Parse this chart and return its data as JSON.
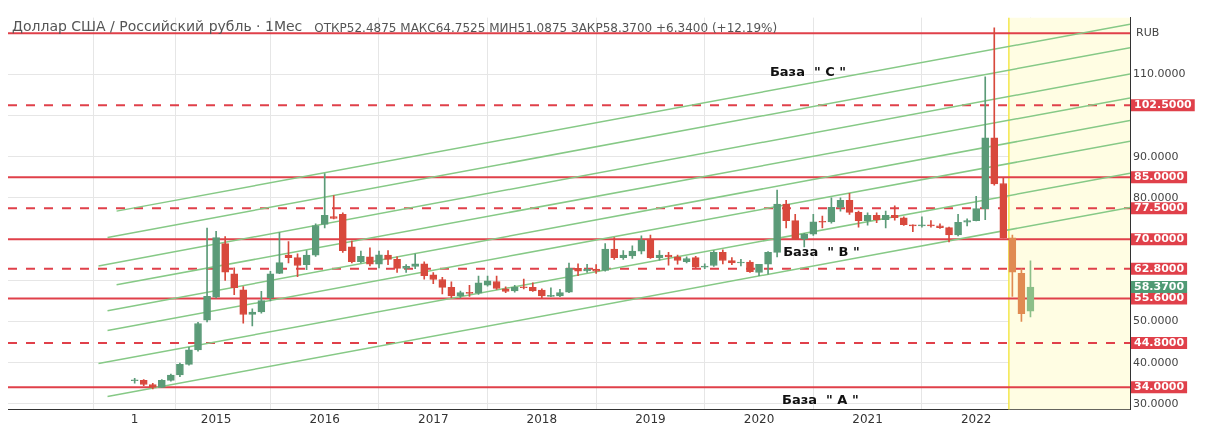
{
  "chart_data": {
    "type": "candlestick",
    "title": "Доллар США / Российский рубль · 1Мес",
    "subtitle": "ОТКР52.4875 МАКС64.7525 МИН51.0875 ЗАКР58.3700 +6.3400 (+12.19%)",
    "ylabel": "RUB",
    "x": [
      "2014-04",
      "2014-05",
      "2014-06",
      "2014-07",
      "2014-08",
      "2014-09",
      "2014-10",
      "2014-11",
      "2014-12",
      "2015-01",
      "2015-02",
      "2015-03",
      "2015-04",
      "2015-05",
      "2015-06",
      "2015-07",
      "2015-08",
      "2015-09",
      "2015-10",
      "2015-11",
      "2015-12",
      "2016-01",
      "2016-02",
      "2016-03",
      "2016-04",
      "2016-05",
      "2016-06",
      "2016-07",
      "2016-08",
      "2016-09",
      "2016-10",
      "2016-11",
      "2016-12",
      "2017-01",
      "2017-02",
      "2017-03",
      "2017-04",
      "2017-05",
      "2017-06",
      "2017-07",
      "2017-08",
      "2017-09",
      "2017-10",
      "2017-11",
      "2017-12",
      "2018-01",
      "2018-02",
      "2018-03",
      "2018-04",
      "2018-05",
      "2018-06",
      "2018-07",
      "2018-08",
      "2018-09",
      "2018-10",
      "2018-11",
      "2018-12",
      "2019-01",
      "2019-02",
      "2019-03",
      "2019-04",
      "2019-05",
      "2019-06",
      "2019-07",
      "2019-08",
      "2019-09",
      "2019-10",
      "2019-11",
      "2019-12",
      "2020-01",
      "2020-02",
      "2020-03",
      "2020-04",
      "2020-05",
      "2020-06",
      "2020-07",
      "2020-08",
      "2020-09",
      "2020-10",
      "2020-11",
      "2020-12",
      "2021-01",
      "2021-02",
      "2021-03",
      "2021-04",
      "2021-05",
      "2021-06",
      "2021-07",
      "2021-08",
      "2021-09",
      "2021-10",
      "2021-11",
      "2021-12",
      "2022-01",
      "2022-02",
      "2022-03",
      "2022-04",
      "2022-05",
      "2022-06",
      "2022-07"
    ],
    "ohlc": [
      [
        35.6,
        36.2,
        35.0,
        35.7
      ],
      [
        35.7,
        35.9,
        34.4,
        34.7
      ],
      [
        34.7,
        35.0,
        33.6,
        34.0
      ],
      [
        34.0,
        35.9,
        33.9,
        35.7
      ],
      [
        35.7,
        37.2,
        35.5,
        37.0
      ],
      [
        37.0,
        39.9,
        36.6,
        39.6
      ],
      [
        39.6,
        43.7,
        39.4,
        43.1
      ],
      [
        43.1,
        49.8,
        42.8,
        49.5
      ],
      [
        50.3,
        72.7,
        49.9,
        56.1
      ],
      [
        55.9,
        71.9,
        55.7,
        70.4
      ],
      [
        68.9,
        70.6,
        60.0,
        62.0
      ],
      [
        61.6,
        63.0,
        56.5,
        58.2
      ],
      [
        57.7,
        58.5,
        49.6,
        51.7
      ],
      [
        51.7,
        53.1,
        48.9,
        52.3
      ],
      [
        52.3,
        57.3,
        52.0,
        55.1
      ],
      [
        55.7,
        62.2,
        55.0,
        61.6
      ],
      [
        61.7,
        71.6,
        61.6,
        64.3
      ],
      [
        66.1,
        69.4,
        64.2,
        65.5
      ],
      [
        65.5,
        66.4,
        60.9,
        63.6
      ],
      [
        63.8,
        67.2,
        62.6,
        66.1
      ],
      [
        66.1,
        73.7,
        65.8,
        73.3
      ],
      [
        73.6,
        85.9,
        72.7,
        75.8
      ],
      [
        75.5,
        80.6,
        74.9,
        75.0
      ],
      [
        76.0,
        76.4,
        66.8,
        67.2
      ],
      [
        68.1,
        69.5,
        64.2,
        64.5
      ],
      [
        64.5,
        67.1,
        64.2,
        65.8
      ],
      [
        65.7,
        67.9,
        63.5,
        63.9
      ],
      [
        63.9,
        67.1,
        63.0,
        66.2
      ],
      [
        66.1,
        67.2,
        63.8,
        65.1
      ],
      [
        65.1,
        65.7,
        61.9,
        62.9
      ],
      [
        62.9,
        63.8,
        61.9,
        63.4
      ],
      [
        63.4,
        66.4,
        62.8,
        64.0
      ],
      [
        64.0,
        64.5,
        60.3,
        61.1
      ],
      [
        61.3,
        61.9,
        59.2,
        60.2
      ],
      [
        60.2,
        60.7,
        56.7,
        58.3
      ],
      [
        58.3,
        59.6,
        55.7,
        56.2
      ],
      [
        56.2,
        57.4,
        55.7,
        57.0
      ],
      [
        57.1,
        58.8,
        56.1,
        56.8
      ],
      [
        56.9,
        61.0,
        56.6,
        59.4
      ],
      [
        58.8,
        61.0,
        58.6,
        59.9
      ],
      [
        59.7,
        61.0,
        57.8,
        58.0
      ],
      [
        57.9,
        58.4,
        57.0,
        57.3
      ],
      [
        57.4,
        58.8,
        57.1,
        58.3
      ],
      [
        58.3,
        60.3,
        57.9,
        58.2
      ],
      [
        58.3,
        59.4,
        57.3,
        57.4
      ],
      [
        57.6,
        57.9,
        55.7,
        56.2
      ],
      [
        56.1,
        58.2,
        56.0,
        56.2
      ],
      [
        56.2,
        57.8,
        56.0,
        57.0
      ],
      [
        57.1,
        64.2,
        57.0,
        62.9
      ],
      [
        62.9,
        64.0,
        61.1,
        62.2
      ],
      [
        62.3,
        63.9,
        61.9,
        62.7
      ],
      [
        62.7,
        63.8,
        61.7,
        62.2
      ],
      [
        62.4,
        68.9,
        62.2,
        67.6
      ],
      [
        67.6,
        70.4,
        65.1,
        65.5
      ],
      [
        65.5,
        67.2,
        65.1,
        66.1
      ],
      [
        65.9,
        68.4,
        65.3,
        67.1
      ],
      [
        67.1,
        70.8,
        66.4,
        69.7
      ],
      [
        70.0,
        71.0,
        65.3,
        65.5
      ],
      [
        65.5,
        67.2,
        64.9,
        66.1
      ],
      [
        66.1,
        66.8,
        63.7,
        65.7
      ],
      [
        65.7,
        66.1,
        63.9,
        64.8
      ],
      [
        64.5,
        65.7,
        64.2,
        65.3
      ],
      [
        65.5,
        65.8,
        63.0,
        63.2
      ],
      [
        63.2,
        64.0,
        62.8,
        63.4
      ],
      [
        63.6,
        67.2,
        63.4,
        66.8
      ],
      [
        66.8,
        67.4,
        64.0,
        64.8
      ],
      [
        64.8,
        65.5,
        63.8,
        64.2
      ],
      [
        64.2,
        65.1,
        63.5,
        64.4
      ],
      [
        64.4,
        64.8,
        61.9,
        62.1
      ],
      [
        61.9,
        63.9,
        61.1,
        63.9
      ],
      [
        63.9,
        67.0,
        61.5,
        66.8
      ],
      [
        66.8,
        81.9,
        65.7,
        78.5
      ],
      [
        78.5,
        79.4,
        72.7,
        74.5
      ],
      [
        74.5,
        76.0,
        69.9,
        70.0
      ],
      [
        70.0,
        71.4,
        68.1,
        71.2
      ],
      [
        71.2,
        76.0,
        70.9,
        74.2
      ],
      [
        74.3,
        75.6,
        72.7,
        74.1
      ],
      [
        74.2,
        80.0,
        73.9,
        77.7
      ],
      [
        77.7,
        80.0,
        76.8,
        79.4
      ],
      [
        79.4,
        81.1,
        76.0,
        76.5
      ],
      [
        76.5,
        76.8,
        72.9,
        74.5
      ],
      [
        74.5,
        76.4,
        73.4,
        75.8
      ],
      [
        75.8,
        76.4,
        74.0,
        74.7
      ],
      [
        74.7,
        76.8,
        72.7,
        75.8
      ],
      [
        75.8,
        78.1,
        74.6,
        75.2
      ],
      [
        75.2,
        75.4,
        73.3,
        73.5
      ],
      [
        73.5,
        73.5,
        71.8,
        73.2
      ],
      [
        73.2,
        75.4,
        72.9,
        73.3
      ],
      [
        73.3,
        74.5,
        72.9,
        73.2
      ],
      [
        73.2,
        73.7,
        72.6,
        72.8
      ],
      [
        72.8,
        72.9,
        69.3,
        71.0
      ],
      [
        71.0,
        76.0,
        70.8,
        74.1
      ],
      [
        74.1,
        74.9,
        73.2,
        74.5
      ],
      [
        74.5,
        80.4,
        74.4,
        77.4
      ],
      [
        77.4,
        109.4,
        74.7,
        94.6
      ],
      [
        94.6,
        121.3,
        83.1,
        83.4
      ],
      [
        83.5,
        84.8,
        70.3,
        70.3
      ],
      [
        70.3,
        71.0,
        56.1,
        62.0
      ],
      [
        61.7,
        62.8,
        50.0,
        51.9
      ],
      [
        52.4875,
        64.7525,
        51.0875,
        58.37
      ]
    ],
    "colors": [
      "#5b9b78",
      "#d8493d",
      "#d8493d",
      "#5b9b78",
      "#5b9b78",
      "#5b9b78",
      "#5b9b78",
      "#5b9b78",
      "#5b9b78",
      "#5b9b78",
      "#d8493d",
      "#d8493d",
      "#d8493d",
      "#5b9b78",
      "#5b9b78",
      "#5b9b78",
      "#5b9b78",
      "#d8493d",
      "#d8493d",
      "#5b9b78",
      "#5b9b78",
      "#5b9b78",
      "#d8493d",
      "#d8493d",
      "#d8493d",
      "#5b9b78",
      "#d8493d",
      "#5b9b78",
      "#d8493d",
      "#d8493d",
      "#5b9b78",
      "#5b9b78",
      "#d8493d",
      "#d8493d",
      "#d8493d",
      "#d8493d",
      "#5b9b78",
      "#d8493d",
      "#5b9b78",
      "#5b9b78",
      "#d8493d",
      "#d8493d",
      "#5b9b78",
      "#d8493d",
      "#d8493d",
      "#d8493d",
      "#5b9b78",
      "#5b9b78",
      "#5b9b78",
      "#d8493d",
      "#5b9b78",
      "#d8493d",
      "#5b9b78",
      "#d8493d",
      "#5b9b78",
      "#5b9b78",
      "#5b9b78",
      "#d8493d",
      "#5b9b78",
      "#d8493d",
      "#d8493d",
      "#5b9b78",
      "#d8493d",
      "#5b9b78",
      "#5b9b78",
      "#d8493d",
      "#d8493d",
      "#5b9b78",
      "#d8493d",
      "#5b9b78",
      "#5b9b78",
      "#5b9b78",
      "#d8493d",
      "#d8493d",
      "#5b9b78",
      "#5b9b78",
      "#d8493d",
      "#5b9b78",
      "#5b9b78",
      "#d8493d",
      "#d8493d",
      "#5b9b78",
      "#d8493d",
      "#5b9b78",
      "#d8493d",
      "#d8493d",
      "#d8493d",
      "#5b9b78",
      "#d8493d",
      "#d8493d",
      "#d8493d",
      "#5b9b78",
      "#5b9b78",
      "#5b9b78",
      "#5b9b78",
      "#d8493d",
      "#d8493d",
      "#e08b52",
      "#e08b52",
      "#8cbf88"
    ],
    "series": [
      {
        "type": "line",
        "color": "#86c986",
        "x": [
          "2014-01",
          "2023-06"
        ],
        "values": [
          31.8,
          77.7
        ]
      },
      {
        "type": "line",
        "color": "#86c986",
        "x": [
          "2013-12",
          "2023-06"
        ],
        "values": [
          39.8,
          86.0
        ]
      },
      {
        "type": "line",
        "color": "#86c986",
        "x": [
          "2014-01",
          "2023-06"
        ],
        "values": [
          47.8,
          93.8
        ]
      },
      {
        "type": "line",
        "color": "#86c986",
        "x": [
          "2014-01",
          "2023-06"
        ],
        "values": [
          52.6,
          98.8
        ]
      },
      {
        "type": "line",
        "color": "#86c986",
        "x": [
          "2014-02",
          "2023-06"
        ],
        "values": [
          58.9,
          104.3
        ]
      },
      {
        "type": "line",
        "color": "#86c986",
        "x": [
          "2013-12",
          "2023-06"
        ],
        "values": [
          63.5,
          110.1
        ]
      },
      {
        "type": "line",
        "color": "#86c986",
        "x": [
          "2014-01",
          "2023-06"
        ],
        "values": [
          70.4,
          116.5
        ]
      },
      {
        "type": "line",
        "color": "#86c986",
        "x": [
          "2014-02",
          "2023-06"
        ],
        "values": [
          76.8,
          122.2
        ]
      }
    ],
    "ref_lines": [
      {
        "axis": "x",
        "value": "2022-04-20",
        "color": "#f2e64a",
        "line_style": "solid"
      },
      {
        "axis": "y",
        "value": 120,
        "color": "#e0404a",
        "line_style": "solid"
      },
      {
        "axis": "y",
        "value": 102.5,
        "label": "102.5000",
        "color": "#e0404a",
        "line_style": "dashed"
      },
      {
        "axis": "y",
        "value": 85,
        "label": "85.0000",
        "color": "#e0404a",
        "line_style": "solid"
      },
      {
        "axis": "y",
        "value": 77.5,
        "label": "77.5000",
        "color": "#e0404a",
        "line_style": "dashed"
      },
      {
        "axis": "y",
        "value": 70,
        "label": "70.0000",
        "color": "#e0404a",
        "line_style": "solid"
      },
      {
        "axis": "y",
        "value": 62.8,
        "label": "62.8000",
        "color": "#e0404a",
        "line_style": "dashed"
      },
      {
        "axis": "y",
        "value": 55.6,
        "label": "55.6000",
        "color": "#e0404a",
        "line_style": "solid"
      },
      {
        "axis": "y",
        "value": 44.8,
        "label": "44.8000",
        "color": "#e0404a",
        "line_style": "dashed"
      },
      {
        "axis": "y",
        "value": 34,
        "label": "34.0000",
        "color": "#e0404a",
        "line_style": "solid"
      }
    ],
    "bands": [
      {
        "axis": "x",
        "from": "2022-04-20",
        "to": "2023-06",
        "color": "#fffde3"
      }
    ],
    "annotations": [
      "База  \" С \"",
      "База  \" В \"",
      "База  \" А \"",
      "58.3700"
    ],
    "xlim": [
      "2013-02",
      "2023-06"
    ],
    "xticks": [
      {
        "value": "2014-04",
        "label": "1"
      },
      {
        "value": "2015-01",
        "label": "2015"
      },
      {
        "value": "2016-01",
        "label": "2016"
      },
      {
        "value": "2017-01",
        "label": "2017"
      },
      {
        "value": "2018-01",
        "label": "2018"
      },
      {
        "value": "2019-01",
        "label": "2019"
      },
      {
        "value": "2020-01",
        "label": "2020"
      },
      {
        "value": "2021-01",
        "label": "2021"
      },
      {
        "value": "2022-01",
        "label": "2022"
      }
    ],
    "ylim": [
      28.6,
      123.8
    ],
    "yticks": [
      {
        "value": 30,
        "label": "30.0000"
      },
      {
        "value": 40,
        "label": "40.0000"
      },
      {
        "value": 50,
        "label": "50.0000"
      },
      {
        "value": 60,
        "label": null
      },
      {
        "value": 70,
        "label": null
      },
      {
        "value": 80,
        "label": "80.0000"
      },
      {
        "value": 90,
        "label": "90.0000"
      },
      {
        "value": 100,
        "label": null
      },
      {
        "value": 110,
        "label": "110.0000"
      }
    ],
    "grid": true,
    "legend": false
  }
}
